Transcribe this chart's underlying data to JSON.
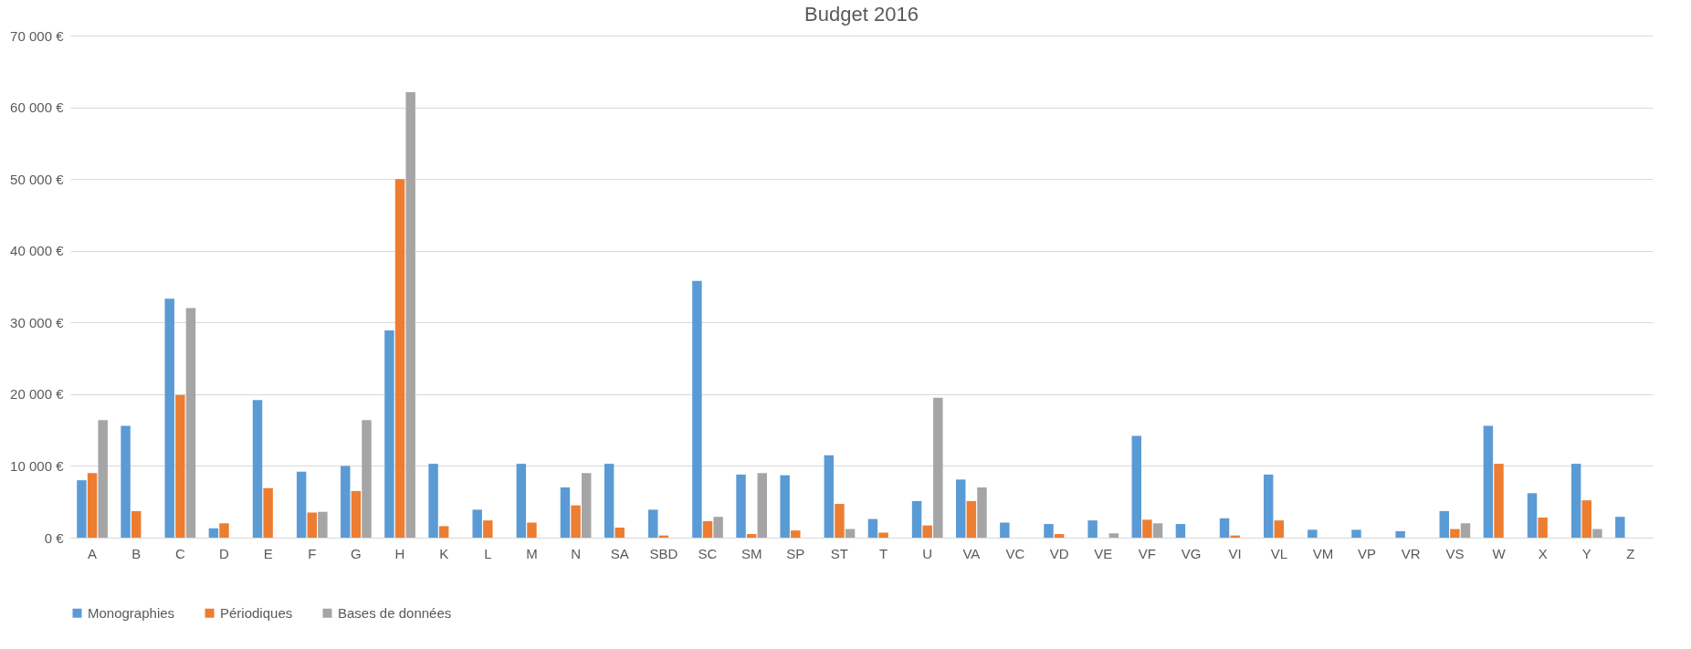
{
  "chart_data": {
    "type": "bar",
    "title": "Budget 2016",
    "categories": [
      "A",
      "B",
      "C",
      "D",
      "E",
      "F",
      "G",
      "H",
      "K",
      "L",
      "M",
      "N",
      "SA",
      "SBD",
      "SC",
      "SM",
      "SP",
      "ST",
      "T",
      "U",
      "VA",
      "VC",
      "VD",
      "VE",
      "VF",
      "VG",
      "VI",
      "VL",
      "VM",
      "VP",
      "VR",
      "VS",
      "W",
      "X",
      "Y",
      "Z"
    ],
    "series": [
      {
        "name": "Monographies",
        "color": "#5b9bd5",
        "values": [
          8000,
          15600,
          33300,
          1300,
          19200,
          9200,
          10000,
          28900,
          10300,
          3900,
          10300,
          7000,
          10300,
          3900,
          35800,
          8800,
          8700,
          11500,
          2600,
          5100,
          8100,
          2100,
          1900,
          2400,
          14200,
          1900,
          2700,
          8800,
          1100,
          1100,
          900,
          3700,
          15600,
          6200,
          10300,
          2900
        ]
      },
      {
        "name": "Périodiques",
        "color": "#ed7d31",
        "values": [
          9000,
          3700,
          19900,
          2000,
          6900,
          3500,
          6500,
          50000,
          1600,
          2400,
          2100,
          4500,
          1400,
          300,
          2300,
          500,
          1000,
          4700,
          700,
          1700,
          5100,
          null,
          500,
          null,
          2500,
          null,
          300,
          2400,
          null,
          null,
          null,
          1200,
          10300,
          2800,
          5200,
          null
        ]
      },
      {
        "name": "Bases de données",
        "color": "#a5a5a5",
        "values": [
          16400,
          null,
          32000,
          null,
          null,
          3600,
          16400,
          62100,
          null,
          null,
          null,
          9000,
          null,
          null,
          2900,
          9000,
          null,
          1200,
          null,
          19500,
          7000,
          null,
          null,
          600,
          2000,
          null,
          null,
          null,
          null,
          null,
          null,
          2000,
          null,
          null,
          1200,
          null
        ]
      }
    ],
    "ylim": [
      0,
      70000
    ],
    "yticks": [
      {
        "value": 0,
        "label": "0 €"
      },
      {
        "value": 10000,
        "label": "10 000 €"
      },
      {
        "value": 20000,
        "label": "20 000 €"
      },
      {
        "value": 30000,
        "label": "30 000 €"
      },
      {
        "value": 40000,
        "label": "40 000 €"
      },
      {
        "value": 50000,
        "label": "50 000 €"
      },
      {
        "value": 60000,
        "label": "60 000 €"
      },
      {
        "value": 70000,
        "label": "70 000 €"
      }
    ],
    "grid": "y",
    "legend": "bottom"
  }
}
